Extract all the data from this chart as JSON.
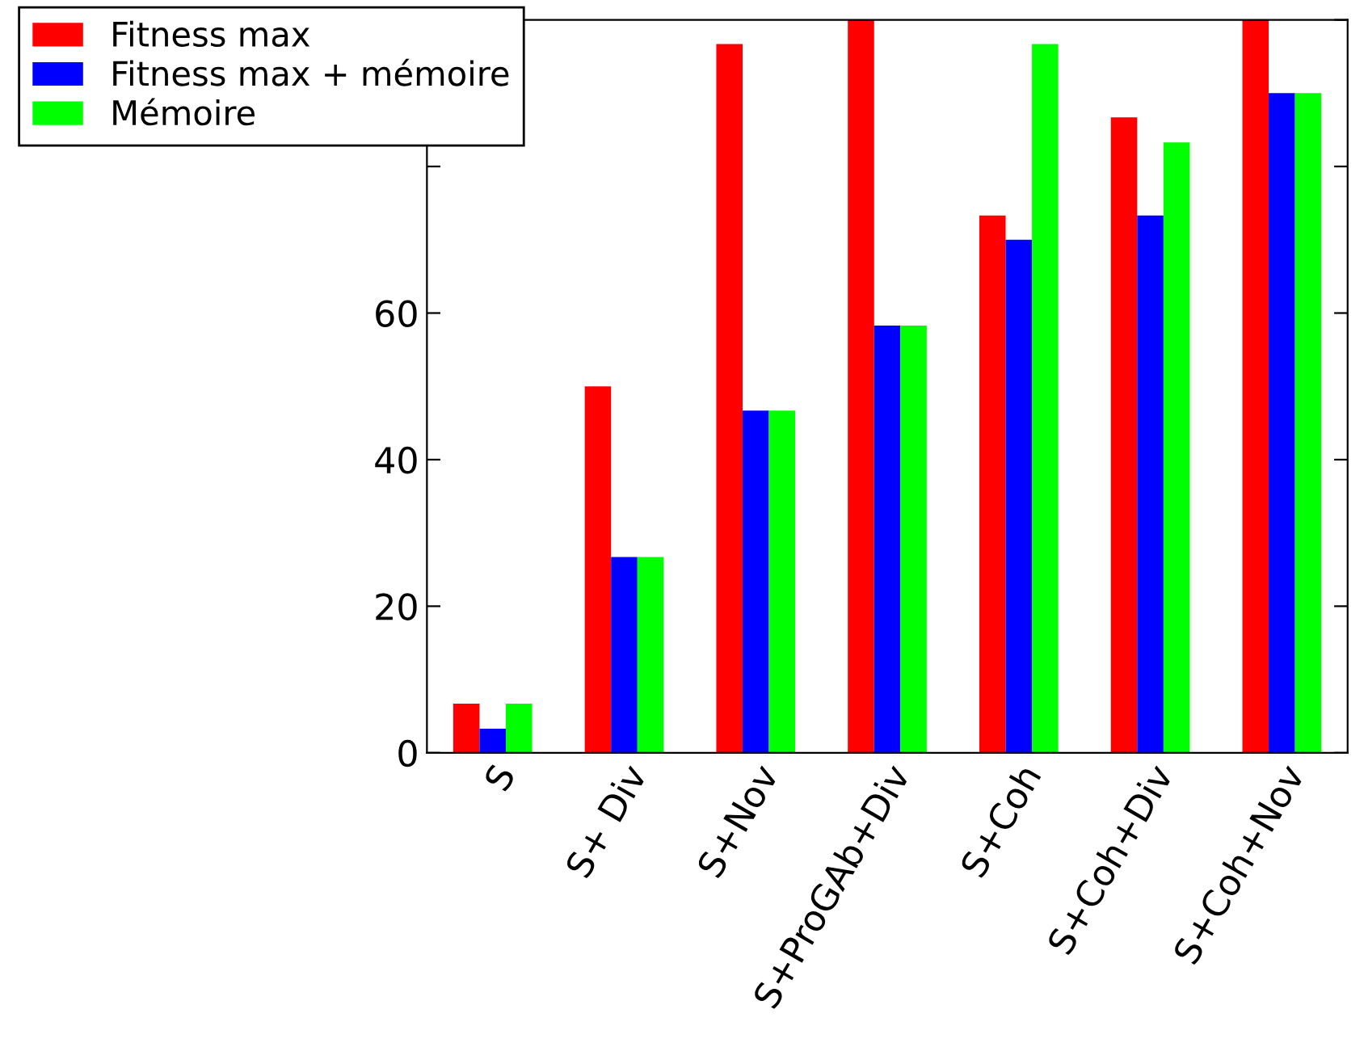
{
  "chart_data": {
    "type": "bar",
    "categories": [
      "S",
      "S+ Div",
      "S+Nov",
      "S+ProGAb+Div",
      "S+Coh",
      "S+Coh+Div",
      "S+Coh+Nov"
    ],
    "series": [
      {
        "name": "Fitness max",
        "color": "#ff0000",
        "values": [
          6.7,
          50,
          96.7,
          100,
          73.3,
          86.7,
          100
        ]
      },
      {
        "name": "Fitness max + mémoire",
        "color": "#0000ff",
        "values": [
          3.3,
          26.7,
          46.7,
          58.3,
          70,
          73.3,
          90
        ]
      },
      {
        "name": "Mémoire",
        "color": "#00ff00",
        "values": [
          6.7,
          26.7,
          46.7,
          58.3,
          96.7,
          83.3,
          90
        ]
      }
    ],
    "ylim": [
      0,
      100
    ],
    "yticks": [
      0,
      20,
      40,
      60,
      {
        "value": 80,
        "label": null
      },
      {
        "value": 100,
        "label": null
      }
    ],
    "grid": false,
    "legend": "top left"
  }
}
